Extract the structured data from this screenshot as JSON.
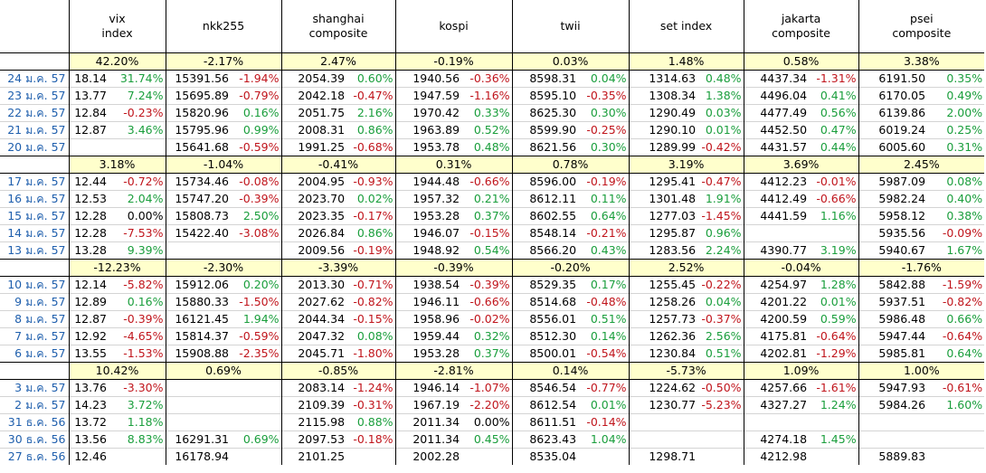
{
  "columns": [
    {
      "name": "vix\nindex"
    },
    {
      "name": "nkk255"
    },
    {
      "name": "shanghai\ncomposite"
    },
    {
      "name": "kospi"
    },
    {
      "name": "twii"
    },
    {
      "name": "set index"
    },
    {
      "name": "jakarta\ncomposite"
    },
    {
      "name": "psei\ncomposite"
    }
  ],
  "blocks": [
    {
      "weekly": [
        "42.20%",
        "-2.17%",
        "2.47%",
        "-0.19%",
        "0.03%",
        "1.48%",
        "0.58%",
        "3.38%"
      ],
      "rows": [
        {
          "date": "24 ม.ค. 57",
          "cells": [
            [
              "18.14",
              "31.74%"
            ],
            [
              "15391.56",
              "-1.94%"
            ],
            [
              "2054.39",
              "0.60%"
            ],
            [
              "1940.56",
              "-0.36%"
            ],
            [
              "8598.31",
              "0.04%"
            ],
            [
              "1314.63",
              "0.48%"
            ],
            [
              "4437.34",
              "-1.31%"
            ],
            [
              "6191.50",
              "0.35%"
            ]
          ]
        },
        {
          "date": "23 ม.ค. 57",
          "cells": [
            [
              "13.77",
              "7.24%"
            ],
            [
              "15695.89",
              "-0.79%"
            ],
            [
              "2042.18",
              "-0.47%"
            ],
            [
              "1947.59",
              "-1.16%"
            ],
            [
              "8595.10",
              "-0.35%"
            ],
            [
              "1308.34",
              "1.38%"
            ],
            [
              "4496.04",
              "0.41%"
            ],
            [
              "6170.05",
              "0.49%"
            ]
          ]
        },
        {
          "date": "22 ม.ค. 57",
          "cells": [
            [
              "12.84",
              "-0.23%"
            ],
            [
              "15820.96",
              "0.16%"
            ],
            [
              "2051.75",
              "2.16%"
            ],
            [
              "1970.42",
              "0.33%"
            ],
            [
              "8625.30",
              "0.30%"
            ],
            [
              "1290.49",
              "0.03%"
            ],
            [
              "4477.49",
              "0.56%"
            ],
            [
              "6139.86",
              "2.00%"
            ]
          ]
        },
        {
          "date": "21 ม.ค. 57",
          "cells": [
            [
              "12.87",
              "3.46%"
            ],
            [
              "15795.96",
              "0.99%"
            ],
            [
              "2008.31",
              "0.86%"
            ],
            [
              "1963.89",
              "0.52%"
            ],
            [
              "8599.90",
              "-0.25%"
            ],
            [
              "1290.10",
              "0.01%"
            ],
            [
              "4452.50",
              "0.47%"
            ],
            [
              "6019.24",
              "0.25%"
            ]
          ]
        },
        {
          "date": "20 ม.ค. 57",
          "cells": [
            [
              "",
              ""
            ],
            [
              "15641.68",
              "-0.59%"
            ],
            [
              "1991.25",
              "-0.68%"
            ],
            [
              "1953.78",
              "0.48%"
            ],
            [
              "8621.56",
              "0.30%"
            ],
            [
              "1289.99",
              "-0.42%"
            ],
            [
              "4431.57",
              "0.44%"
            ],
            [
              "6005.60",
              "0.31%"
            ]
          ]
        }
      ]
    },
    {
      "weekly": [
        "3.18%",
        "-1.04%",
        "-0.41%",
        "0.31%",
        "0.78%",
        "3.19%",
        "3.69%",
        "2.45%"
      ],
      "rows": [
        {
          "date": "17 ม.ค. 57",
          "cells": [
            [
              "12.44",
              "-0.72%"
            ],
            [
              "15734.46",
              "-0.08%"
            ],
            [
              "2004.95",
              "-0.93%"
            ],
            [
              "1944.48",
              "-0.66%"
            ],
            [
              "8596.00",
              "-0.19%"
            ],
            [
              "1295.41",
              "-0.47%"
            ],
            [
              "4412.23",
              "-0.01%"
            ],
            [
              "5987.09",
              "0.08%"
            ]
          ]
        },
        {
          "date": "16 ม.ค. 57",
          "cells": [
            [
              "12.53",
              "2.04%"
            ],
            [
              "15747.20",
              "-0.39%"
            ],
            [
              "2023.70",
              "0.02%"
            ],
            [
              "1957.32",
              "0.21%"
            ],
            [
              "8612.11",
              "0.11%"
            ],
            [
              "1301.48",
              "1.91%"
            ],
            [
              "4412.49",
              "-0.66%"
            ],
            [
              "5982.24",
              "0.40%"
            ]
          ]
        },
        {
          "date": "15 ม.ค. 57",
          "cells": [
            [
              "12.28",
              "0.00%"
            ],
            [
              "15808.73",
              "2.50%"
            ],
            [
              "2023.35",
              "-0.17%"
            ],
            [
              "1953.28",
              "0.37%"
            ],
            [
              "8602.55",
              "0.64%"
            ],
            [
              "1277.03",
              "-1.45%"
            ],
            [
              "4441.59",
              "1.16%"
            ],
            [
              "5958.12",
              "0.38%"
            ]
          ]
        },
        {
          "date": "14 ม.ค. 57",
          "cells": [
            [
              "12.28",
              "-7.53%"
            ],
            [
              "15422.40",
              "-3.08%"
            ],
            [
              "2026.84",
              "0.86%"
            ],
            [
              "1946.07",
              "-0.15%"
            ],
            [
              "8548.14",
              "-0.21%"
            ],
            [
              "1295.87",
              "0.96%"
            ],
            [
              "",
              ""
            ],
            [
              "5935.56",
              "-0.09%"
            ]
          ]
        },
        {
          "date": "13 ม.ค. 57",
          "cells": [
            [
              "13.28",
              "9.39%"
            ],
            [
              "",
              ""
            ],
            [
              "2009.56",
              "-0.19%"
            ],
            [
              "1948.92",
              "0.54%"
            ],
            [
              "8566.20",
              "0.43%"
            ],
            [
              "1283.56",
              "2.24%"
            ],
            [
              "4390.77",
              "3.19%"
            ],
            [
              "5940.67",
              "1.67%"
            ]
          ]
        }
      ]
    },
    {
      "weekly": [
        "-12.23%",
        "-2.30%",
        "-3.39%",
        "-0.39%",
        "-0.20%",
        "2.52%",
        "-0.04%",
        "-1.76%"
      ],
      "rows": [
        {
          "date": "10 ม.ค. 57",
          "cells": [
            [
              "12.14",
              "-5.82%"
            ],
            [
              "15912.06",
              "0.20%"
            ],
            [
              "2013.30",
              "-0.71%"
            ],
            [
              "1938.54",
              "-0.39%"
            ],
            [
              "8529.35",
              "0.17%"
            ],
            [
              "1255.45",
              "-0.22%"
            ],
            [
              "4254.97",
              "1.28%"
            ],
            [
              "5842.88",
              "-1.59%"
            ]
          ]
        },
        {
          "date": "9 ม.ค. 57",
          "cells": [
            [
              "12.89",
              "0.16%"
            ],
            [
              "15880.33",
              "-1.50%"
            ],
            [
              "2027.62",
              "-0.82%"
            ],
            [
              "1946.11",
              "-0.66%"
            ],
            [
              "8514.68",
              "-0.48%"
            ],
            [
              "1258.26",
              "0.04%"
            ],
            [
              "4201.22",
              "0.01%"
            ],
            [
              "5937.51",
              "-0.82%"
            ]
          ]
        },
        {
          "date": "8 ม.ค. 57",
          "cells": [
            [
              "12.87",
              "-0.39%"
            ],
            [
              "16121.45",
              "1.94%"
            ],
            [
              "2044.34",
              "-0.15%"
            ],
            [
              "1958.96",
              "-0.02%"
            ],
            [
              "8556.01",
              "0.51%"
            ],
            [
              "1257.73",
              "-0.37%"
            ],
            [
              "4200.59",
              "0.59%"
            ],
            [
              "5986.48",
              "0.66%"
            ]
          ]
        },
        {
          "date": "7 ม.ค. 57",
          "cells": [
            [
              "12.92",
              "-4.65%"
            ],
            [
              "15814.37",
              "-0.59%"
            ],
            [
              "2047.32",
              "0.08%"
            ],
            [
              "1959.44",
              "0.32%"
            ],
            [
              "8512.30",
              "0.14%"
            ],
            [
              "1262.36",
              "2.56%"
            ],
            [
              "4175.81",
              "-0.64%"
            ],
            [
              "5947.44",
              "-0.64%"
            ]
          ]
        },
        {
          "date": "6 ม.ค. 57",
          "cells": [
            [
              "13.55",
              "-1.53%"
            ],
            [
              "15908.88",
              "-2.35%"
            ],
            [
              "2045.71",
              "-1.80%"
            ],
            [
              "1953.28",
              "0.37%"
            ],
            [
              "8500.01",
              "-0.54%"
            ],
            [
              "1230.84",
              "0.51%"
            ],
            [
              "4202.81",
              "-1.29%"
            ],
            [
              "5985.81",
              "0.64%"
            ]
          ]
        }
      ]
    },
    {
      "weekly": [
        "10.42%",
        "0.69%",
        "-0.85%",
        "-2.81%",
        "0.14%",
        "-5.73%",
        "1.09%",
        "1.00%"
      ],
      "rows": [
        {
          "date": "3 ม.ค. 57",
          "cells": [
            [
              "13.76",
              "-3.30%"
            ],
            [
              "",
              ""
            ],
            [
              "2083.14",
              "-1.24%"
            ],
            [
              "1946.14",
              "-1.07%"
            ],
            [
              "8546.54",
              "-0.77%"
            ],
            [
              "1224.62",
              "-0.50%"
            ],
            [
              "4257.66",
              "-1.61%"
            ],
            [
              "5947.93",
              "-0.61%"
            ]
          ]
        },
        {
          "date": "2 ม.ค. 57",
          "cells": [
            [
              "14.23",
              "3.72%"
            ],
            [
              "",
              ""
            ],
            [
              "2109.39",
              "-0.31%"
            ],
            [
              "1967.19",
              "-2.20%"
            ],
            [
              "8612.54",
              "0.01%"
            ],
            [
              "1230.77",
              "-5.23%"
            ],
            [
              "4327.27",
              "1.24%"
            ],
            [
              "5984.26",
              "1.60%"
            ]
          ]
        },
        {
          "date": "31 ธ.ค. 56",
          "cells": [
            [
              "13.72",
              "1.18%"
            ],
            [
              "",
              ""
            ],
            [
              "2115.98",
              "0.88%"
            ],
            [
              "2011.34",
              "0.00%"
            ],
            [
              "8611.51",
              "-0.14%"
            ],
            [
              "",
              ""
            ],
            [
              "",
              ""
            ],
            [
              "",
              ""
            ]
          ]
        },
        {
          "date": "30 ธ.ค. 56",
          "cells": [
            [
              "13.56",
              "8.83%"
            ],
            [
              "16291.31",
              "0.69%"
            ],
            [
              "2097.53",
              "-0.18%"
            ],
            [
              "2011.34",
              "0.45%"
            ],
            [
              "8623.43",
              "1.04%"
            ],
            [
              "",
              ""
            ],
            [
              "4274.18",
              "1.45%"
            ],
            [
              "",
              ""
            ]
          ]
        },
        {
          "date": "27 ธ.ค. 56",
          "cells": [
            [
              "12.46",
              ""
            ],
            [
              "16178.94",
              ""
            ],
            [
              "2101.25",
              ""
            ],
            [
              "2002.28",
              ""
            ],
            [
              "8535.04",
              ""
            ],
            [
              "1298.71",
              ""
            ],
            [
              "4212.98",
              ""
            ],
            [
              "5889.83",
              ""
            ]
          ]
        }
      ]
    }
  ]
}
